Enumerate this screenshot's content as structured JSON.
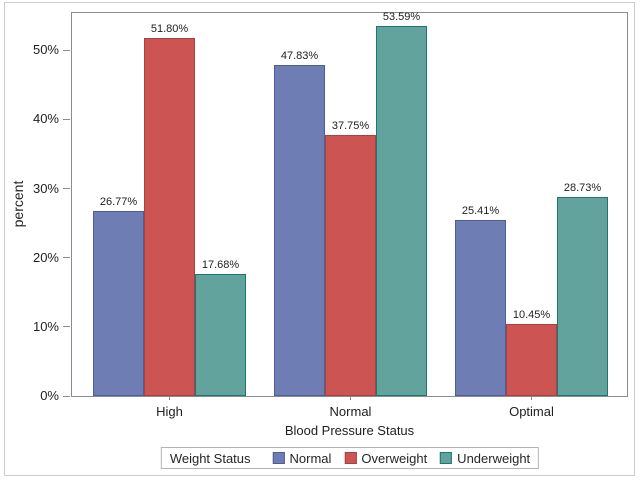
{
  "chart_data": {
    "type": "bar",
    "title": "",
    "xlabel": "Blood Pressure Status",
    "ylabel": "percent",
    "categories": [
      "High",
      "Normal",
      "Optimal"
    ],
    "series": [
      {
        "name": "Normal",
        "values": [
          26.77,
          47.83,
          25.41
        ],
        "labels": [
          "26.77%",
          "47.83%",
          "25.41%"
        ],
        "fill": "#6e7eb4",
        "stroke": "#4e5d94"
      },
      {
        "name": "Overweight",
        "values": [
          51.8,
          37.75,
          10.45
        ],
        "labels": [
          "51.80%",
          "37.75%",
          "10.45%"
        ],
        "fill": "#cc5452",
        "stroke": "#a84141"
      },
      {
        "name": "Underweight",
        "values": [
          17.68,
          53.59,
          28.73
        ],
        "labels": [
          "17.68%",
          "53.59%",
          "28.73%"
        ],
        "fill": "#63a39d",
        "stroke": "#1f7670"
      }
    ],
    "y_ticks": [
      "0%",
      "10%",
      "20%",
      "30%",
      "40%",
      "50%"
    ],
    "y_tick_values": [
      0,
      10,
      20,
      30,
      40,
      50
    ],
    "ylim": [
      0,
      55.4
    ],
    "grid": false,
    "legend_title": "Weight Status",
    "legend_position": "bottom"
  }
}
